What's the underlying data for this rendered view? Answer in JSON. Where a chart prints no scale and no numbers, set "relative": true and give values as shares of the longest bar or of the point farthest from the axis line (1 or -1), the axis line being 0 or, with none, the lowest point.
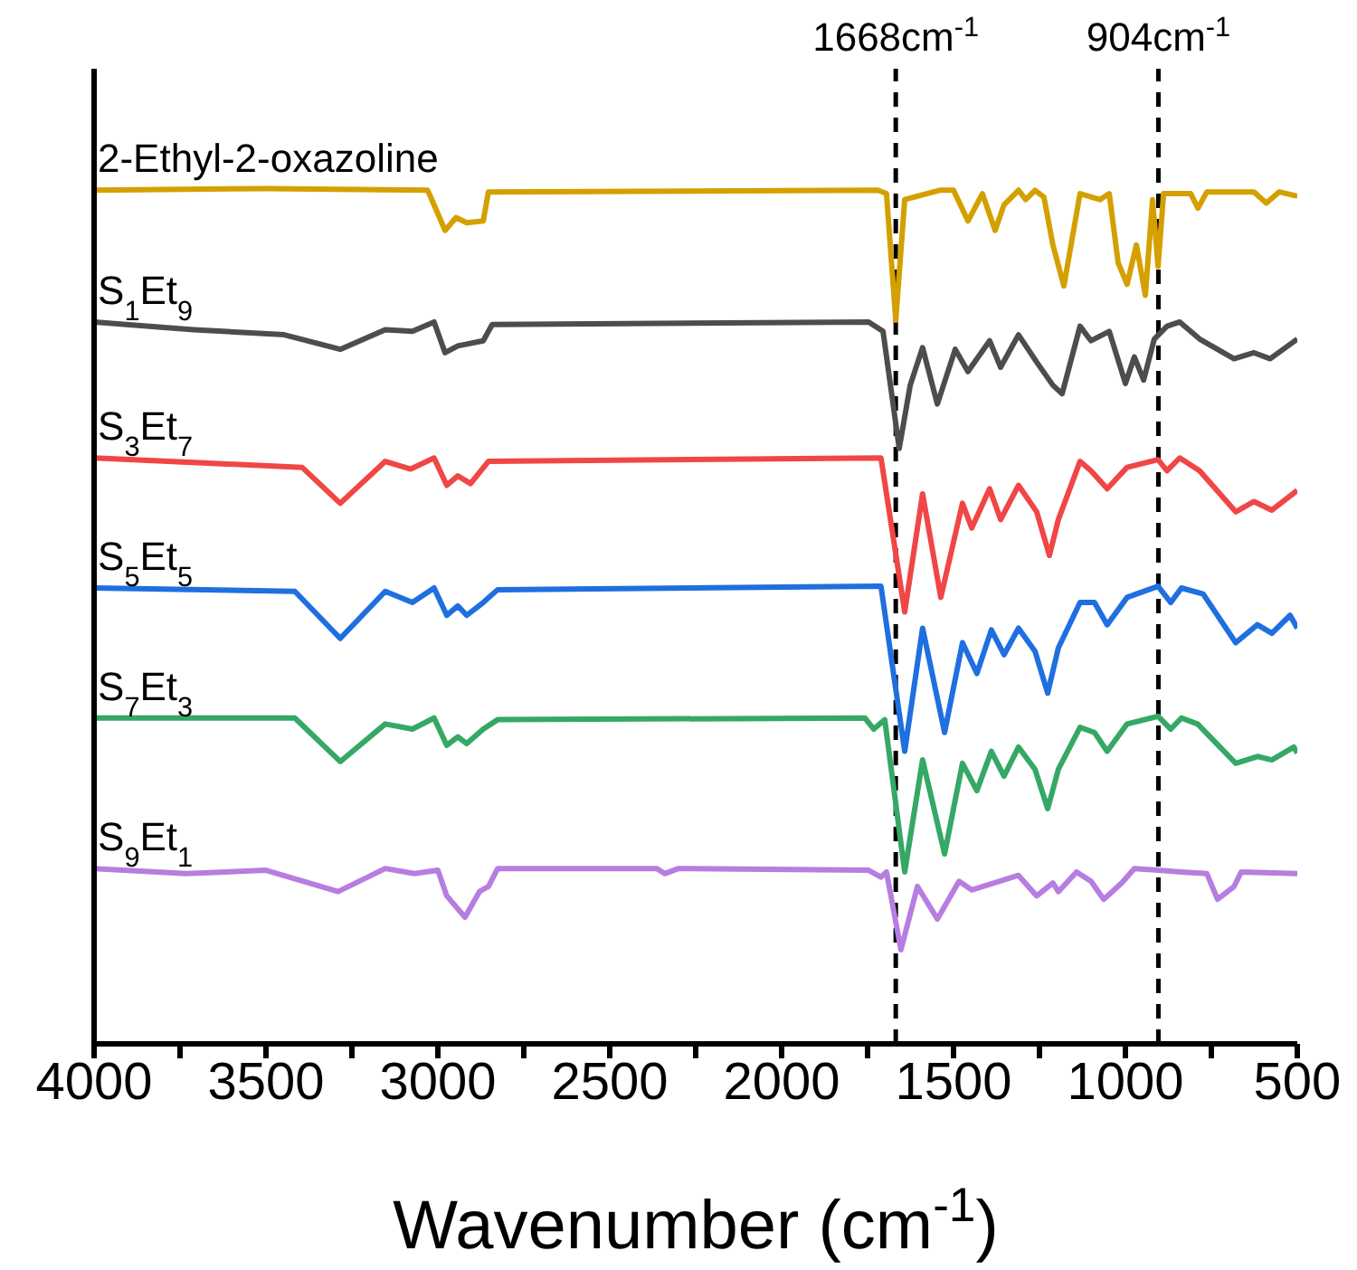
{
  "chart_data": {
    "type": "line",
    "relative": true,
    "xlabel": "Wavenumber (cm$^{-1}$)",
    "xlim": [
      4000,
      500
    ],
    "xticks": [
      4000,
      {
        "value": 3750,
        "label": null
      },
      3500,
      {
        "value": 3250,
        "label": null
      },
      3000,
      {
        "value": 2750,
        "label": null
      },
      2500,
      {
        "value": 2250,
        "label": null
      },
      2000,
      {
        "value": 1750,
        "label": null
      },
      1500,
      {
        "value": 1250,
        "label": null
      },
      1000,
      {
        "value": 750,
        "label": null
      },
      500
    ],
    "grid": false,
    "legend": false,
    "marker": "none",
    "line_style": "solid",
    "ref_lines": [
      {
        "axis": "x",
        "value": 1668,
        "label": "1668cm$^{-1}$",
        "color": "#000000",
        "line_style": "dashed"
      },
      {
        "axis": "x",
        "value": 904,
        "label": "904cm$^{-1}$",
        "color": "#000000",
        "line_style": "dashed"
      }
    ],
    "series": [
      {
        "name": "2-Ethyl-2-oxazoline",
        "color": "#d4a000",
        "x": [
          4000,
          3500,
          3030,
          3021,
          2979,
          2947,
          2916,
          2868,
          2853,
          1720,
          1695,
          1668,
          1642,
          1540,
          1500,
          1458,
          1416,
          1379,
          1353,
          1311,
          1290,
          1263,
          1237,
          1211,
          1179,
          1132,
          1074,
          1047,
          1021,
          995,
          968,
          942,
          921,
          905,
          889,
          810,
          789,
          763,
          626,
          590,
          553,
          500
        ],
        "values": [
          0.998,
          1,
          0.998,
          0.99,
          0.951,
          0.966,
          0.96,
          0.962,
          0.996,
          0.998,
          0.994,
          0.846,
          0.987,
          0.998,
          0.998,
          0.962,
          0.994,
          0.951,
          0.981,
          0.998,
          0.987,
          0.998,
          0.99,
          0.934,
          0.886,
          0.994,
          0.987,
          0.994,
          0.913,
          0.888,
          0.934,
          0.875,
          0.987,
          0.909,
          0.994,
          0.994,
          0.977,
          0.996,
          0.996,
          0.983,
          0.996,
          0.991
        ]
      },
      {
        "name": "S$_{1}$Et$_{9}$",
        "color": "#4d4d4d",
        "x": [
          4000,
          3711,
          3447,
          3284,
          3153,
          3074,
          3011,
          2979,
          2942,
          2868,
          2842,
          1747,
          1705,
          1658,
          1626,
          1590,
          1547,
          1495,
          1458,
          1395,
          1363,
          1311,
          1258,
          1211,
          1184,
          1132,
          1100,
          1047,
          1000,
          974,
          947,
          916,
          879,
          842,
          784,
          684,
          626,
          579,
          500
        ],
        "values": [
          0.844,
          0.835,
          0.829,
          0.812,
          0.835,
          0.833,
          0.844,
          0.808,
          0.816,
          0.822,
          0.841,
          0.844,
          0.833,
          0.696,
          0.77,
          0.814,
          0.748,
          0.812,
          0.786,
          0.822,
          0.791,
          0.829,
          0.797,
          0.77,
          0.76,
          0.839,
          0.822,
          0.833,
          0.772,
          0.803,
          0.776,
          0.824,
          0.839,
          0.844,
          0.824,
          0.801,
          0.808,
          0.801,
          0.824
        ]
      },
      {
        "name": "S$_{3}$Et$_{7}$",
        "color": "#f04646",
        "x": [
          4000,
          3395,
          3284,
          3153,
          3079,
          3011,
          2974,
          2942,
          2905,
          2853,
          1711,
          1642,
          1590,
          1537,
          1474,
          1447,
          1395,
          1363,
          1311,
          1258,
          1221,
          1195,
          1132,
          1100,
          1053,
          995,
          905,
          879,
          842,
          784,
          679,
          626,
          574,
          500
        ],
        "values": [
          0.685,
          0.674,
          0.632,
          0.681,
          0.672,
          0.685,
          0.653,
          0.664,
          0.655,
          0.681,
          0.685,
          0.505,
          0.643,
          0.522,
          0.632,
          0.603,
          0.649,
          0.613,
          0.653,
          0.622,
          0.571,
          0.613,
          0.681,
          0.67,
          0.649,
          0.674,
          0.683,
          0.67,
          0.685,
          0.67,
          0.622,
          0.634,
          0.624,
          0.647
        ]
      },
      {
        "name": "S$_{5}$Et$_{5}$",
        "color": "#1f6fe0",
        "x": [
          4000,
          3416,
          3284,
          3153,
          3074,
          3011,
          2974,
          2942,
          2916,
          2868,
          2826,
          1711,
          1642,
          1590,
          1526,
          1474,
          1432,
          1390,
          1353,
          1311,
          1263,
          1226,
          1195,
          1132,
          1090,
          1053,
          995,
          905,
          868,
          837,
          774,
          679,
          616,
          574,
          521,
          500
        ],
        "values": [
          0.533,
          0.529,
          0.474,
          0.529,
          0.516,
          0.533,
          0.501,
          0.512,
          0.501,
          0.516,
          0.531,
          0.535,
          0.342,
          0.486,
          0.364,
          0.469,
          0.433,
          0.484,
          0.455,
          0.486,
          0.459,
          0.41,
          0.463,
          0.516,
          0.516,
          0.49,
          0.522,
          0.535,
          0.516,
          0.533,
          0.526,
          0.469,
          0.49,
          0.48,
          0.501,
          0.486
        ]
      },
      {
        "name": "S$_{7}$Et$_{3}$",
        "color": "#35a865",
        "x": [
          4000,
          3416,
          3284,
          3153,
          3074,
          3011,
          2974,
          2942,
          2916,
          2868,
          2826,
          1758,
          1732,
          1700,
          1642,
          1590,
          1526,
          1474,
          1432,
          1390,
          1353,
          1311,
          1263,
          1226,
          1195,
          1132,
          1090,
          1053,
          995,
          905,
          868,
          837,
          790,
          679,
          616,
          574,
          510,
          500
        ],
        "values": [
          0.381,
          0.381,
          0.33,
          0.374,
          0.368,
          0.381,
          0.349,
          0.359,
          0.351,
          0.368,
          0.379,
          0.381,
          0.368,
          0.379,
          0.201,
          0.332,
          0.222,
          0.328,
          0.296,
          0.342,
          0.313,
          0.347,
          0.321,
          0.275,
          0.321,
          0.37,
          0.364,
          0.342,
          0.374,
          0.383,
          0.368,
          0.381,
          0.374,
          0.328,
          0.336,
          0.332,
          0.347,
          0.34
        ]
      },
      {
        "name": "S$_{9}$Et$_{1}$",
        "color": "#b77de0",
        "x": [
          4000,
          3732,
          3500,
          3290,
          3153,
          3068,
          3000,
          2974,
          2921,
          2879,
          2853,
          2826,
          2363,
          2340,
          2300,
          1747,
          1711,
          1695,
          1653,
          1605,
          1547,
          1484,
          1447,
          1311,
          1258,
          1211,
          1195,
          1142,
          1100,
          1063,
          1011,
          974,
          905,
          837,
          763,
          732,
          684,
          663,
          500
        ],
        "values": [
          0.205,
          0.199,
          0.203,
          0.178,
          0.205,
          0.199,
          0.203,
          0.173,
          0.148,
          0.178,
          0.184,
          0.205,
          0.205,
          0.199,
          0.205,
          0.203,
          0.195,
          0.201,
          0.11,
          0.184,
          0.146,
          0.19,
          0.18,
          0.197,
          0.173,
          0.188,
          0.178,
          0.201,
          0.19,
          0.169,
          0.188,
          0.205,
          0.203,
          0.201,
          0.199,
          0.169,
          0.184,
          0.201,
          0.199
        ]
      }
    ]
  }
}
